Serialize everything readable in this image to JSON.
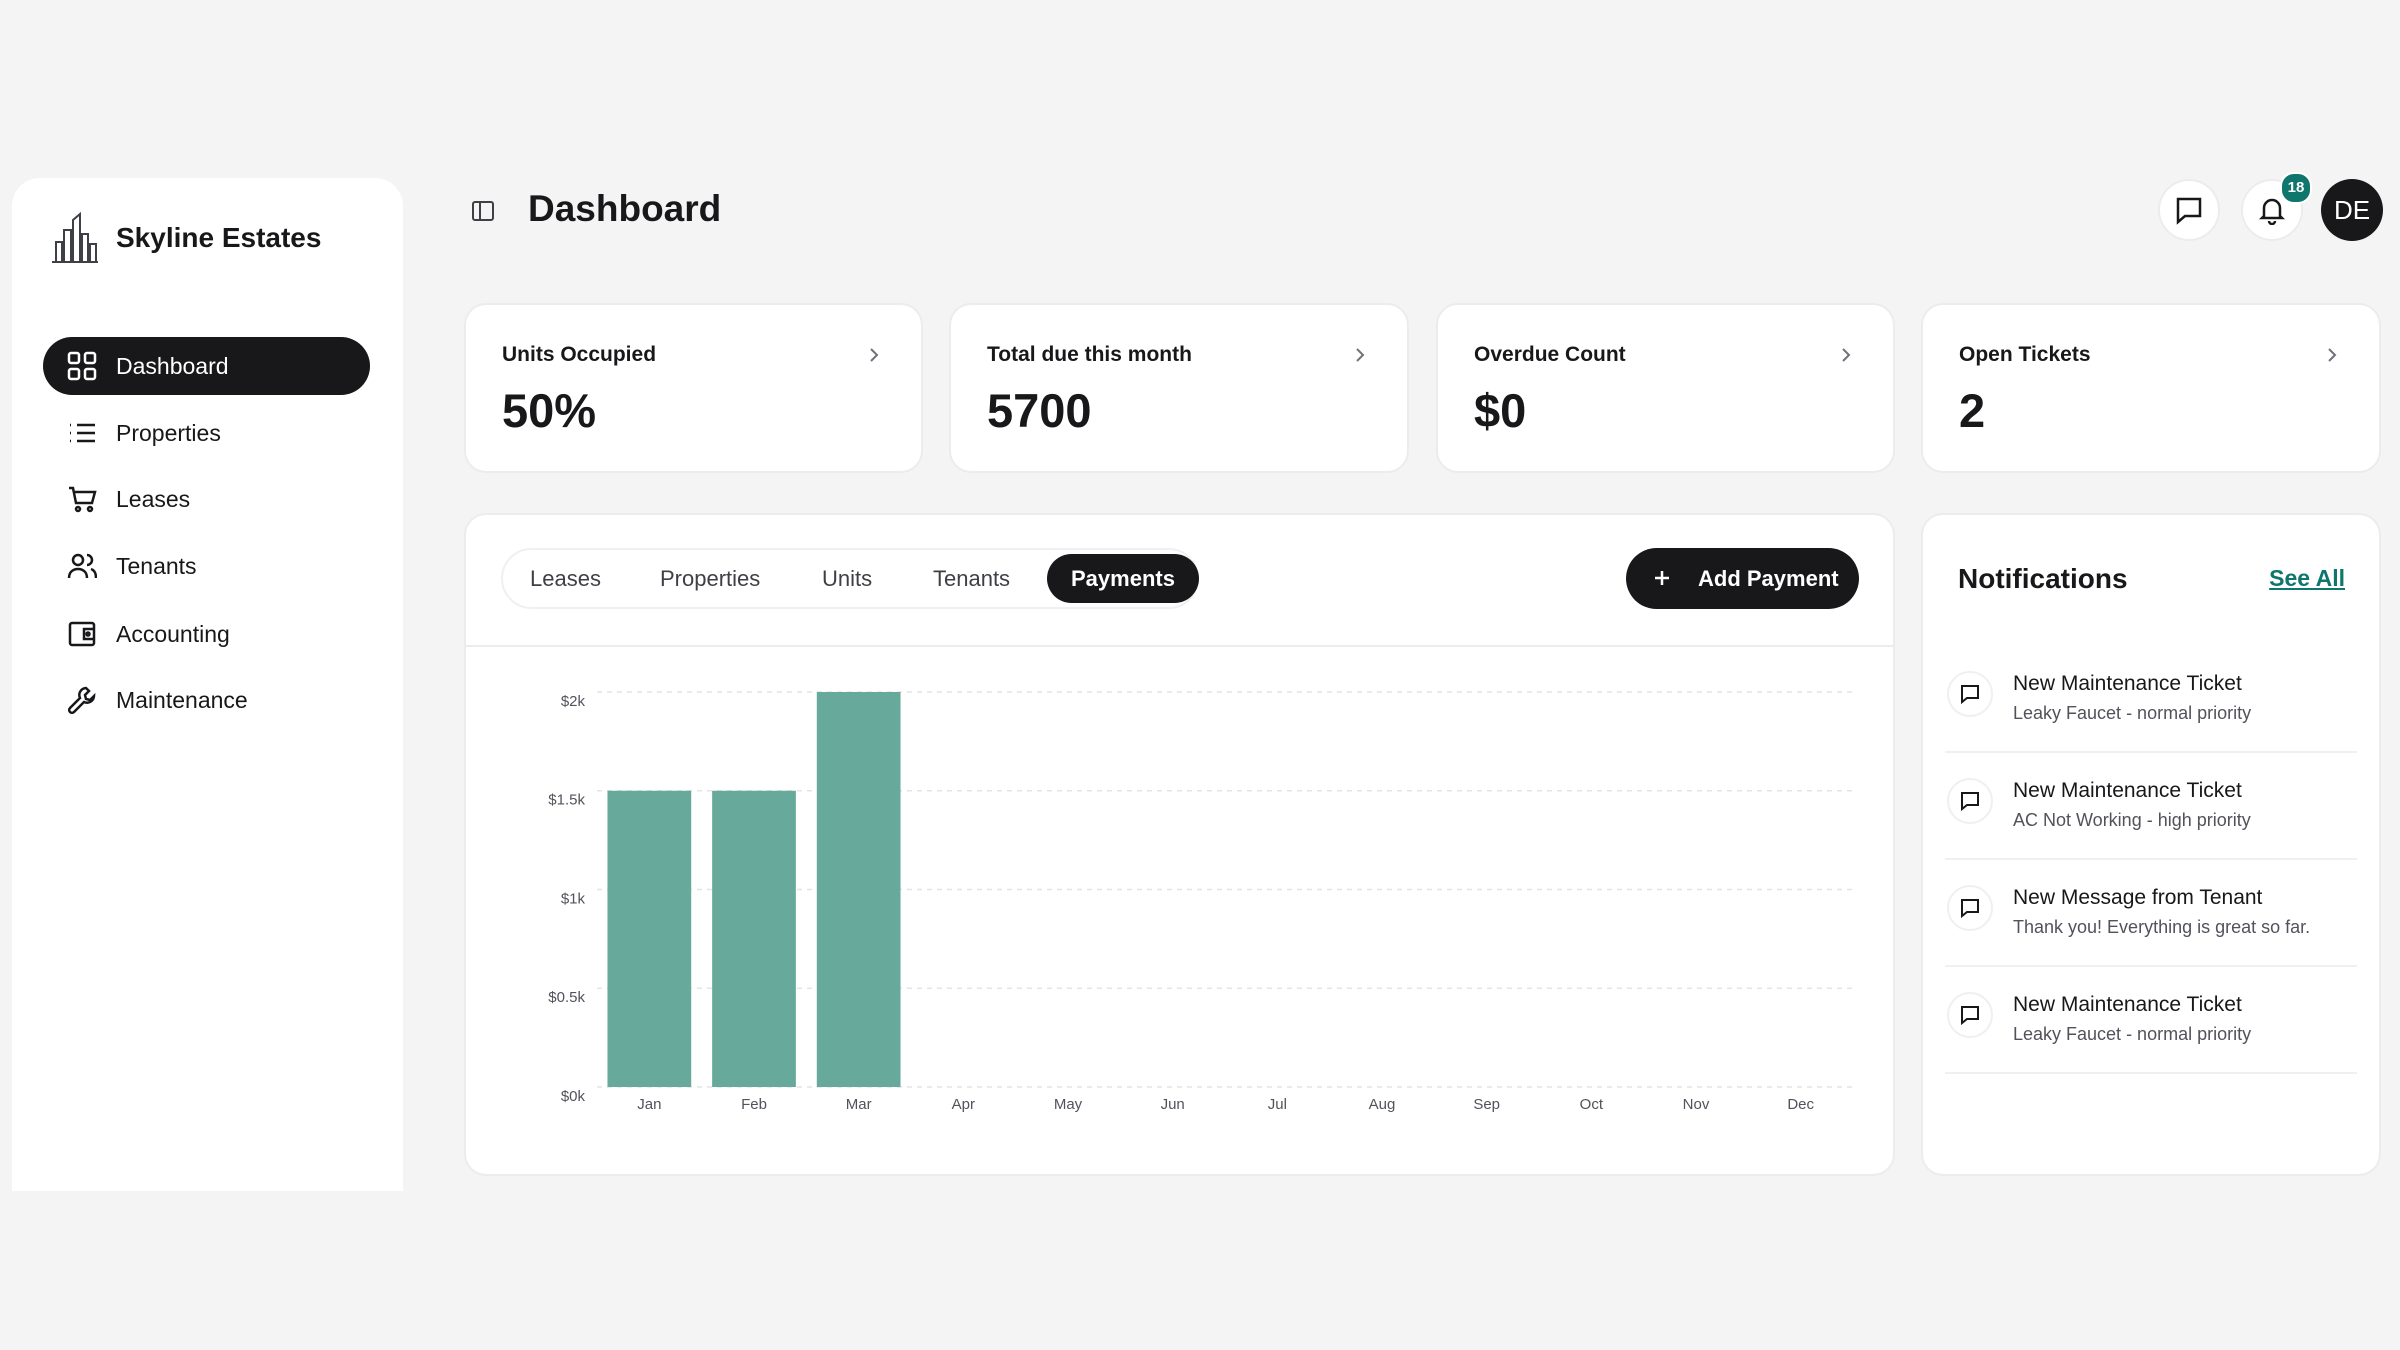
{
  "sidebar": {
    "brand": "Skyline Estates",
    "nav": [
      "Dashboard",
      "Properties",
      "Leases",
      "Tenants",
      "Accounting",
      "Maintenance"
    ]
  },
  "header": {
    "title": "Dashboard",
    "badge": 18,
    "avatar": "DE"
  },
  "stats": [
    {
      "label": "Units Occupied",
      "value": "50%"
    },
    {
      "label": "Total due this month",
      "value": "5700"
    },
    {
      "label": "Overdue Count",
      "value": "$0"
    },
    {
      "label": "Open Tickets",
      "value": "2"
    }
  ],
  "tabs": [
    "Leases",
    "Properties",
    "Units",
    "Tenants",
    "Payments"
  ],
  "add_button": "Add Payment",
  "chart_data": {
    "type": "bar",
    "categories": [
      "Jan",
      "Feb",
      "Mar",
      "Apr",
      "May",
      "Jun",
      "Jul",
      "Aug",
      "Sep",
      "Oct",
      "Nov",
      "Dec"
    ],
    "values": [
      1500,
      1500,
      2000,
      0,
      0,
      0,
      0,
      0,
      0,
      0,
      0,
      0
    ],
    "color": "#67a99b",
    "ylim": [
      0,
      2000
    ],
    "yticks": [
      {
        "value": 0,
        "label": "$0k"
      },
      {
        "value": 500,
        "label": "$0.5k"
      },
      {
        "value": 1000,
        "label": "$1k"
      },
      {
        "value": 1500,
        "label": "$1.5k"
      },
      {
        "value": 2000,
        "label": "$2k"
      }
    ],
    "grid": true
  },
  "notifications": {
    "title": "Notifications",
    "see_all": "See All",
    "items": [
      {
        "title": "New Maintenance Ticket",
        "subtitle": "Leaky Faucet - normal priority"
      },
      {
        "title": "New Maintenance Ticket",
        "subtitle": "AC Not Working - high priority"
      },
      {
        "title": "New Message from Tenant",
        "subtitle": "Thank you! Everything is great so far."
      },
      {
        "title": "New Maintenance Ticket",
        "subtitle": "Leaky Faucet - normal priority"
      }
    ]
  }
}
